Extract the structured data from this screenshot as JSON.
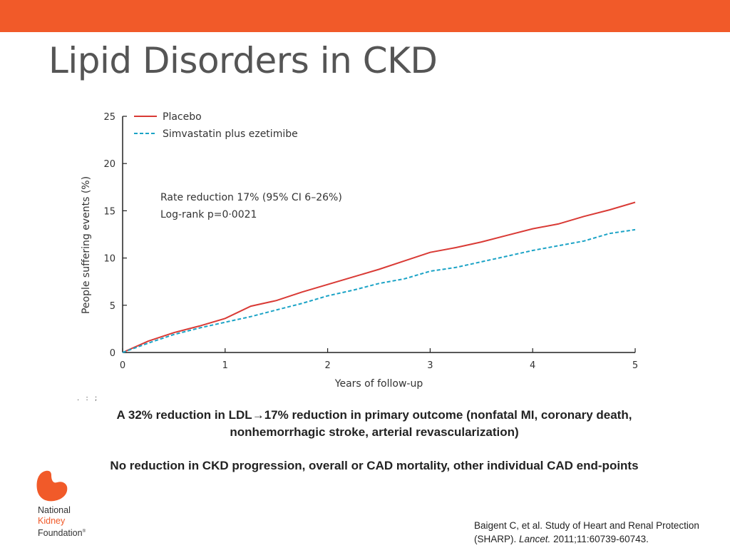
{
  "slide": {
    "title": "Lipid Disorders in CKD",
    "accent_color": "#f15a29"
  },
  "chart_data": {
    "type": "line",
    "title": "",
    "xlabel": "Years of follow-up",
    "ylabel": "People suffering events (%)",
    "xlim": [
      0,
      5
    ],
    "ylim": [
      0,
      25
    ],
    "xticks": [
      0,
      1,
      2,
      3,
      4,
      5
    ],
    "yticks": [
      0,
      5,
      10,
      15,
      20,
      25
    ],
    "grid": false,
    "legend_position": "top-left",
    "series": [
      {
        "name": "Placebo",
        "color": "#d93a35",
        "style": "solid",
        "x": [
          0,
          0.25,
          0.5,
          0.75,
          1.0,
          1.25,
          1.5,
          1.75,
          2.0,
          2.25,
          2.5,
          2.75,
          3.0,
          3.25,
          3.5,
          3.75,
          4.0,
          4.25,
          4.5,
          4.75,
          5.0
        ],
        "y": [
          0,
          1.2,
          2.1,
          2.8,
          3.6,
          4.9,
          5.5,
          6.4,
          7.2,
          8.0,
          8.8,
          9.7,
          10.6,
          11.1,
          11.7,
          12.4,
          13.1,
          13.6,
          14.4,
          15.1,
          15.9
        ]
      },
      {
        "name": "Simvastatin plus ezetimibe",
        "color": "#1ba3c6",
        "style": "dashed",
        "x": [
          0,
          0.25,
          0.5,
          0.75,
          1.0,
          1.25,
          1.5,
          1.75,
          2.0,
          2.25,
          2.5,
          2.75,
          3.0,
          3.25,
          3.5,
          3.75,
          4.0,
          4.25,
          4.5,
          4.75,
          5.0
        ],
        "y": [
          0,
          1.0,
          1.9,
          2.6,
          3.2,
          3.8,
          4.5,
          5.2,
          6.0,
          6.6,
          7.3,
          7.8,
          8.6,
          9.0,
          9.6,
          10.2,
          10.8,
          11.3,
          11.8,
          12.6,
          13.0
        ]
      }
    ],
    "annotations": [
      "Rate reduction 17% (95% CI 6–26%)",
      "Log-rank p=0·0021"
    ]
  },
  "findings": [
    "A 32% reduction in LDL→17% reduction in primary outcome (nonfatal MI, coronary death, nonhemorrhagic stroke, arterial revascularization)",
    "No reduction in CKD progression, overall or CAD mortality, other individual CAD end-points"
  ],
  "logo": {
    "icon": "kidney-logo-icon",
    "line1": "National",
    "line2": "Kidney",
    "line3": "Foundation",
    "mark": "®"
  },
  "citation": {
    "prefix": "Baigent C, et al.  Study of Heart and Renal Protection (SHARP). ",
    "journal": "Lancet.",
    "suffix": " 2011;11:60739-60743."
  },
  "decorative_marks": ". : ;"
}
